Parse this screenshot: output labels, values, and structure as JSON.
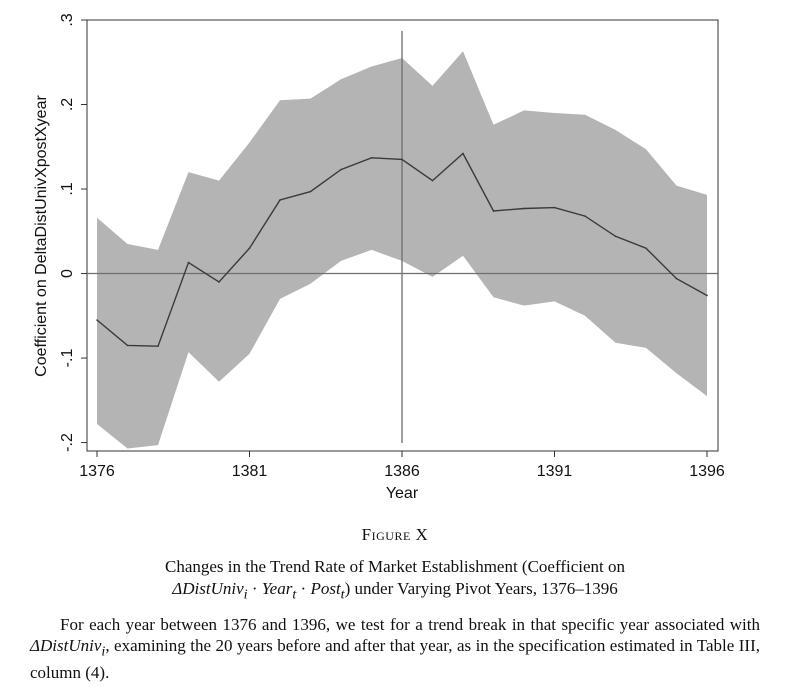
{
  "chart_data": {
    "type": "area",
    "xlabel": "Year",
    "ylabel": "Coefficient on DeltaDistUnivXpostXyear",
    "xlim": [
      1376,
      1396
    ],
    "ylim": [
      -0.21,
      0.3
    ],
    "xticks": [
      1376,
      1381,
      1386,
      1391,
      1396
    ],
    "xtick_labels": [
      "1376",
      "1381",
      "1386",
      "1391",
      "1396"
    ],
    "yticks": [
      -0.2,
      -0.1,
      0,
      0.1,
      0.2,
      0.3
    ],
    "ytick_labels": [
      "-.2",
      "-.1",
      "0",
      ".1",
      ".2",
      ".3"
    ],
    "reference_hline": 0,
    "reference_vline": 1386,
    "x": [
      1376,
      1377,
      1378,
      1379,
      1380,
      1381,
      1382,
      1383,
      1384,
      1385,
      1386,
      1387,
      1388,
      1389,
      1390,
      1391,
      1392,
      1393,
      1394,
      1395,
      1396
    ],
    "series": [
      {
        "values": [
          -0.055,
          -0.085,
          -0.086,
          0.013,
          -0.01,
          0.03,
          0.087,
          0.097,
          0.123,
          0.137,
          0.135,
          0.11,
          0.142,
          0.074,
          0.077,
          0.078,
          0.068,
          0.044,
          0.03,
          -0.006,
          -0.026
        ]
      }
    ],
    "ci_upper": [
      0.066,
      0.035,
      0.028,
      0.12,
      0.11,
      0.155,
      0.205,
      0.207,
      0.23,
      0.245,
      0.255,
      0.222,
      0.263,
      0.176,
      0.193,
      0.19,
      0.188,
      0.17,
      0.147,
      0.104,
      0.093
    ],
    "ci_lower": [
      -0.178,
      -0.207,
      -0.203,
      -0.093,
      -0.128,
      -0.095,
      -0.03,
      -0.012,
      0.015,
      0.028,
      0.015,
      -0.004,
      0.021,
      -0.028,
      -0.038,
      -0.033,
      -0.05,
      -0.082,
      -0.088,
      -0.118,
      -0.145
    ],
    "colors": {
      "band": "#b4b4b4",
      "line": "#3a3a3a",
      "reference": "#6e6e6e"
    },
    "grid": false,
    "legend": "none"
  },
  "figure": {
    "label": "Figure X",
    "title_line1": "Changes in the Trend Rate of Market Establishment (Coefficient on",
    "title_line2_math": "ΔDistUniv",
    "title_line2_i": "i",
    "title_line2_dot1": " · ",
    "title_line2_year": "Year",
    "title_line2_t1": "t",
    "title_line2_dot2": " · ",
    "title_line2_post": "Post",
    "title_line2_t2": "t",
    "title_line2_rest": ") under Varying Pivot Years, 1376–1396",
    "note_part1": "For each year between 1376 and 1396, we test for a trend break in that specific year associated with ",
    "note_math": "ΔDistUniv",
    "note_math_sub": "i",
    "note_part2": ", examining the 20 years before and after that year, as in the specification estimated in Table III, column (4)."
  }
}
